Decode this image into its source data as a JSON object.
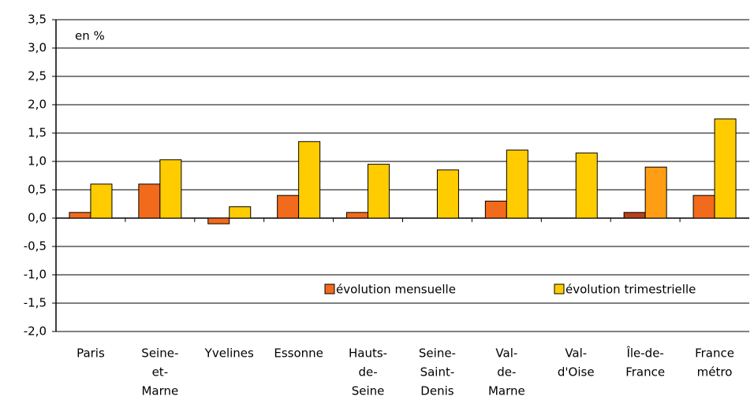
{
  "chart_data": {
    "type": "bar",
    "annotation": "en %",
    "categories": [
      [
        "Paris"
      ],
      [
        "Seine-",
        "et-",
        "Marne"
      ],
      [
        "Yvelines"
      ],
      [
        "Essonne"
      ],
      [
        "Hauts-",
        "de-",
        "Seine"
      ],
      [
        "Seine-",
        "Saint-",
        "Denis"
      ],
      [
        "Val-",
        "de-",
        "Marne"
      ],
      [
        "Val-",
        "d'Oise"
      ],
      [
        "Île-de-",
        "France"
      ],
      [
        "France",
        "métro"
      ]
    ],
    "series": [
      {
        "name": "évolution mensuelle",
        "color": "#f26a1b",
        "colors": [
          "#f26a1b",
          "#f26a1b",
          "#f26a1b",
          "#f26a1b",
          "#f26a1b",
          "#f26a1b",
          "#f26a1b",
          "#f26a1b",
          "#b8401a",
          "#f26a1b"
        ],
        "values": [
          0.1,
          0.6,
          -0.1,
          0.4,
          0.1,
          0.0,
          0.3,
          0.0,
          0.1,
          0.4
        ]
      },
      {
        "name": "évolution trimestrielle",
        "color": "#ffcc00",
        "colors": [
          "#ffcc00",
          "#ffcc00",
          "#ffcc00",
          "#ffcc00",
          "#ffcc00",
          "#ffcc00",
          "#ffcc00",
          "#ffcc00",
          "#ff9d14",
          "#ffcc00"
        ],
        "values": [
          0.6,
          1.03,
          0.2,
          1.35,
          0.95,
          0.85,
          1.2,
          1.15,
          0.9,
          1.75
        ]
      }
    ],
    "ylim": [
      -2.0,
      3.5
    ],
    "yticks": [
      {
        "value": -2.0,
        "label": "-2,0"
      },
      {
        "value": -1.5,
        "label": "-1,5"
      },
      {
        "value": -1.0,
        "label": "-1,0"
      },
      {
        "value": -0.5,
        "label": "-0,5"
      },
      {
        "value": 0.0,
        "label": "0,0"
      },
      {
        "value": 0.5,
        "label": "0,5"
      },
      {
        "value": 1.0,
        "label": "1,0"
      },
      {
        "value": 1.5,
        "label": "1,5"
      },
      {
        "value": 2.0,
        "label": "2,0"
      },
      {
        "value": 2.5,
        "label": "2,5"
      },
      {
        "value": 3.0,
        "label": "3,0"
      },
      {
        "value": 3.5,
        "label": "3,5"
      }
    ],
    "grid": true
  }
}
